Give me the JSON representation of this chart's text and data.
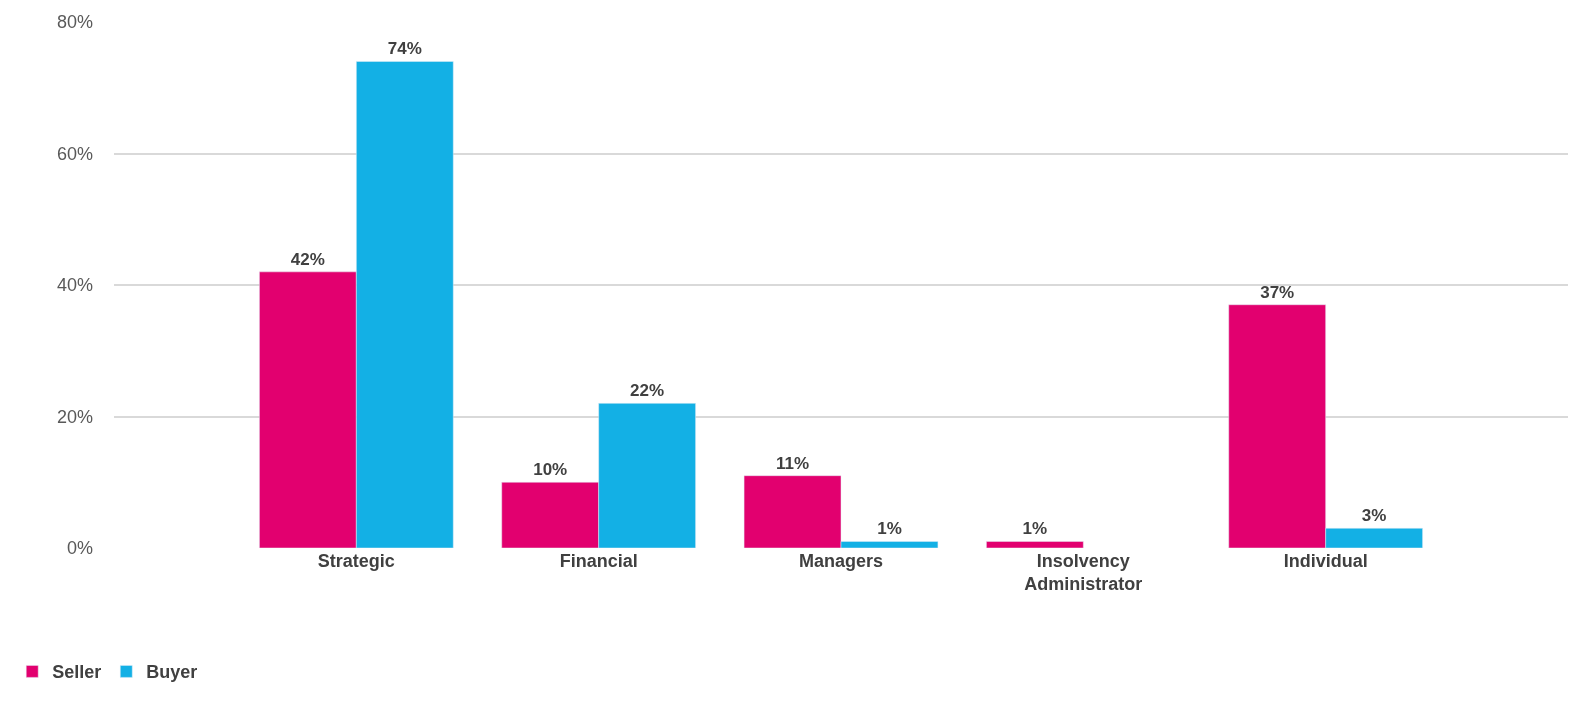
{
  "chart_data": {
    "type": "bar",
    "categories": [
      "Strategic",
      "Financial",
      "Managers",
      "Insolvency Administrator",
      "Individual"
    ],
    "series": [
      {
        "name": "Seller",
        "color": "#e2006f",
        "values": [
          42,
          10,
          11,
          1,
          37
        ],
        "value_labels": [
          "42%",
          "10%",
          "11%",
          "1%",
          "37%"
        ]
      },
      {
        "name": "Buyer",
        "color": "#13b0e5",
        "values": [
          74,
          22,
          1,
          null,
          3
        ],
        "value_labels": [
          "74%",
          "22%",
          "1%",
          null,
          "3%"
        ]
      }
    ],
    "ylim": [
      0,
      80
    ],
    "yticks": [
      {
        "value": 0,
        "label": "0%"
      },
      {
        "value": 20,
        "label": "20%"
      },
      {
        "value": 40,
        "label": "40%"
      },
      {
        "value": 60,
        "label": "60%"
      },
      {
        "value": 80,
        "label": "80%"
      }
    ],
    "grid": "y",
    "legend": "bottom left"
  }
}
